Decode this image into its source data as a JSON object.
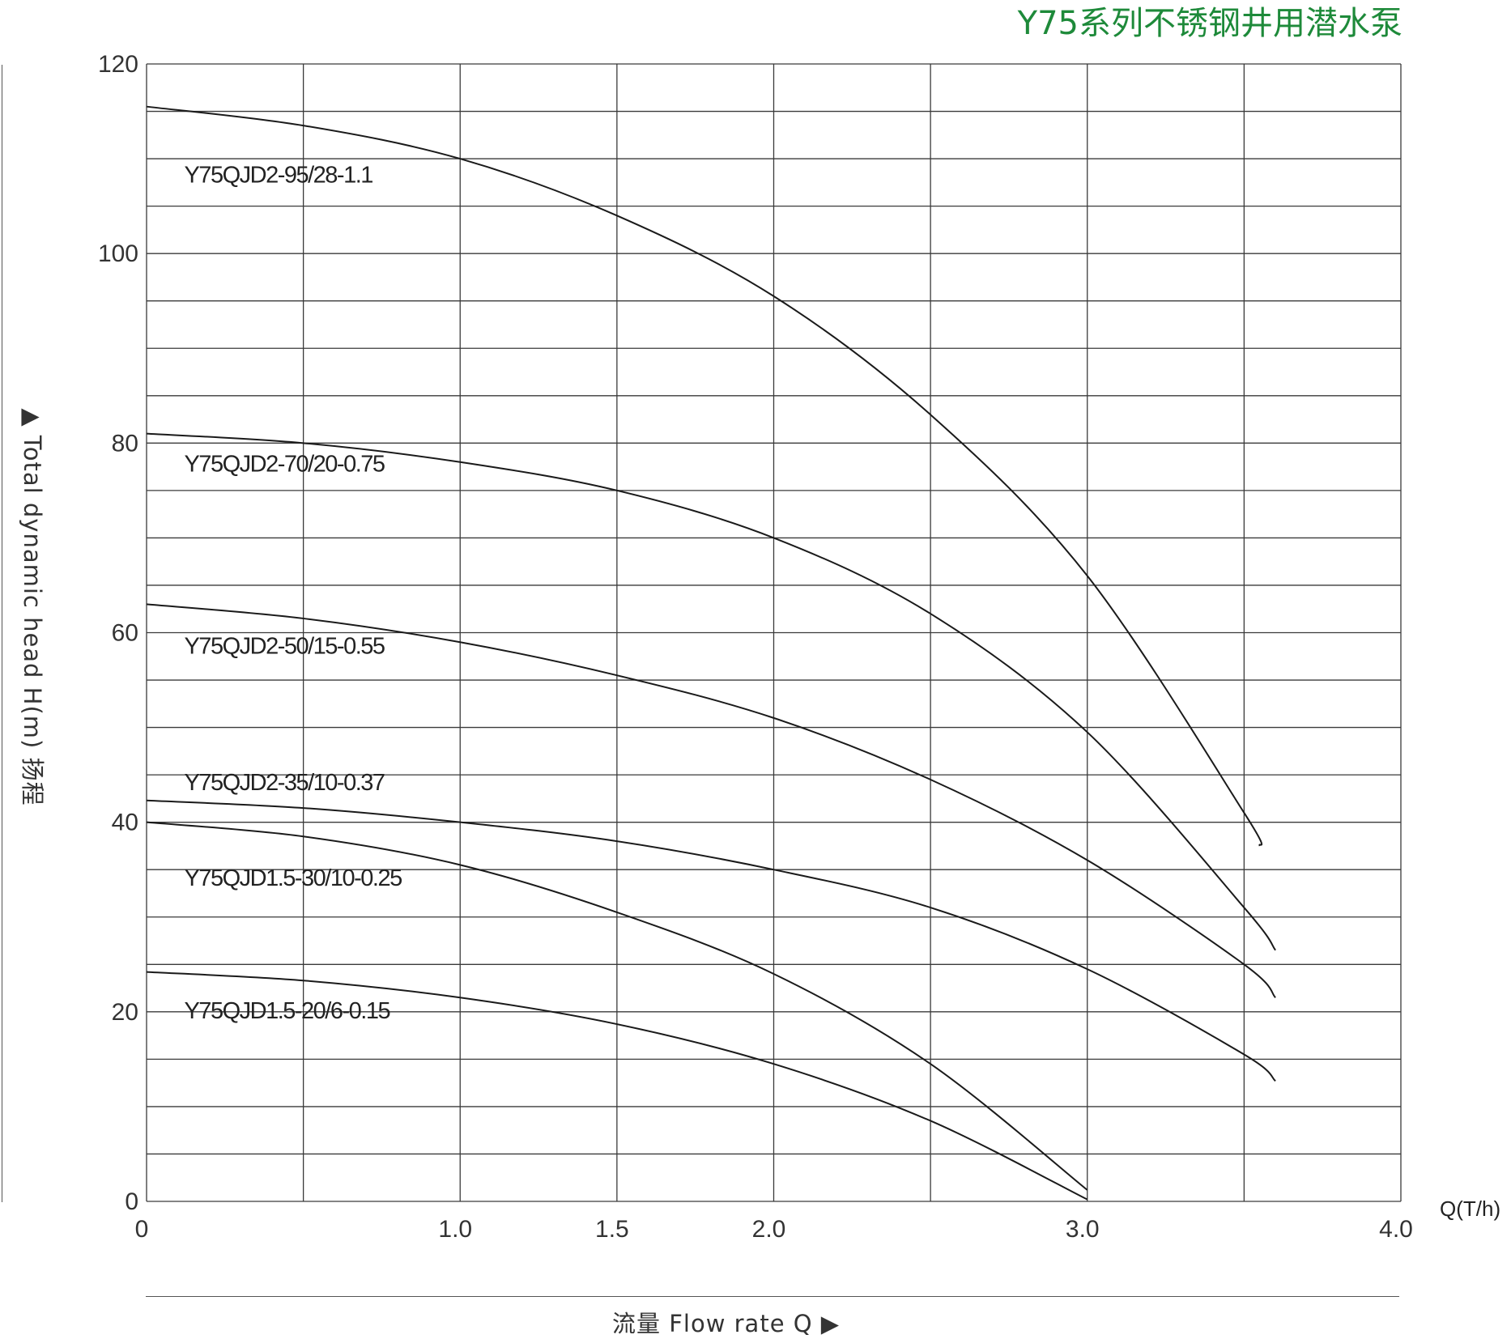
{
  "title": "Y75系列不锈钢井用潜水泵",
  "y_axis_label": "▲ Total dynamic head H(m) 扬程",
  "x_axis_label": "流量  Flow rate Q  ▶",
  "x_unit": "Q(T/h)",
  "chart_data": {
    "type": "line",
    "title": "Y75系列不锈钢井用潜水泵",
    "xlabel": "流量 Flow rate Q",
    "ylabel": "Total dynamic head H(m) 扬程",
    "x_unit": "Q(T/h)",
    "xlim": [
      0,
      4.0
    ],
    "ylim": [
      0,
      120
    ],
    "x_gridlines": [
      0,
      0.5,
      1.0,
      1.5,
      2.0,
      2.5,
      3.0,
      3.5,
      4.0
    ],
    "y_gridlines": [
      0,
      5,
      10,
      15,
      20,
      25,
      30,
      35,
      40,
      45,
      50,
      55,
      60,
      65,
      70,
      75,
      80,
      85,
      90,
      95,
      100,
      105,
      110,
      115,
      120
    ],
    "x_ticks": [
      {
        "value": 0,
        "label": "0"
      },
      {
        "value": 1.0,
        "label": "1.0"
      },
      {
        "value": 1.5,
        "label": "1.5"
      },
      {
        "value": 2.0,
        "label": "2.0"
      },
      {
        "value": 3.0,
        "label": "3.0"
      },
      {
        "value": 4.0,
        "label": "4.0"
      }
    ],
    "y_ticks": [
      {
        "value": 0,
        "label": "0"
      },
      {
        "value": 20,
        "label": "20"
      },
      {
        "value": 40,
        "label": "40"
      },
      {
        "value": 60,
        "label": "60"
      },
      {
        "value": 80,
        "label": "80"
      },
      {
        "value": 100,
        "label": "100"
      },
      {
        "value": 120,
        "label": "120"
      }
    ],
    "grid": true,
    "series": [
      {
        "name": "Y75QJD2-95/28-1.1",
        "label_x": 0.12,
        "label_y": 107.5,
        "points": [
          [
            0,
            115.5
          ],
          [
            0.5,
            113.5
          ],
          [
            1.0,
            110
          ],
          [
            1.5,
            104
          ],
          [
            2.0,
            95.5
          ],
          [
            2.5,
            83
          ],
          [
            3.0,
            66
          ],
          [
            3.5,
            41
          ],
          [
            3.55,
            37.5
          ]
        ]
      },
      {
        "name": "Y75QJD2-70/20-0.75",
        "label_x": 0.12,
        "label_y": 77
      },
      {
        "name": "Y75QJD2-50/15-0.55",
        "label_x": 0.12,
        "label_y": 57.8
      },
      {
        "name": "Y75QJD2-35/10-0.37",
        "label_x": 0.12,
        "label_y": 43.4
      },
      {
        "name": "Y75QJD1.5-30/10-0.25",
        "label_x": 0.12,
        "label_y": 33.3
      },
      {
        "name": "Y75QJD1.5-20/6-0.15",
        "label_x": 0.12,
        "label_y": 19.3
      }
    ],
    "curves": [
      [
        [
          0,
          115.5
        ],
        [
          0.5,
          113.5
        ],
        [
          1.0,
          110
        ],
        [
          1.5,
          104
        ],
        [
          2.0,
          95.5
        ],
        [
          2.5,
          83
        ],
        [
          3.0,
          66
        ],
        [
          3.5,
          41
        ],
        [
          3.55,
          37.5
        ]
      ],
      [
        [
          0,
          81
        ],
        [
          0.5,
          80
        ],
        [
          1.0,
          78
        ],
        [
          1.5,
          75
        ],
        [
          2.0,
          70
        ],
        [
          2.5,
          62
        ],
        [
          3.0,
          49.5
        ],
        [
          3.5,
          31
        ],
        [
          3.6,
          26.5
        ]
      ],
      [
        [
          0,
          63
        ],
        [
          0.5,
          61.5
        ],
        [
          1.0,
          59
        ],
        [
          1.5,
          55.5
        ],
        [
          2.0,
          51
        ],
        [
          2.5,
          44.5
        ],
        [
          3.0,
          36
        ],
        [
          3.5,
          25
        ],
        [
          3.6,
          21.5
        ]
      ],
      [
        [
          0,
          42.3
        ],
        [
          0.5,
          41.5
        ],
        [
          1.0,
          40
        ],
        [
          1.5,
          38
        ],
        [
          2.0,
          35
        ],
        [
          2.5,
          31
        ],
        [
          3.0,
          24.5
        ],
        [
          3.5,
          15.5
        ],
        [
          3.6,
          12.7
        ]
      ],
      [
        [
          0,
          40
        ],
        [
          0.5,
          38.5
        ],
        [
          1.0,
          35.5
        ],
        [
          1.5,
          30.5
        ],
        [
          2.0,
          24
        ],
        [
          2.5,
          14.5
        ],
        [
          3.0,
          1.2
        ]
      ],
      [
        [
          0,
          24.2
        ],
        [
          0.5,
          23.3
        ],
        [
          1.0,
          21.5
        ],
        [
          1.5,
          18.7
        ],
        [
          2.0,
          14.5
        ],
        [
          2.5,
          8.5
        ],
        [
          3.0,
          0.2
        ]
      ]
    ]
  }
}
